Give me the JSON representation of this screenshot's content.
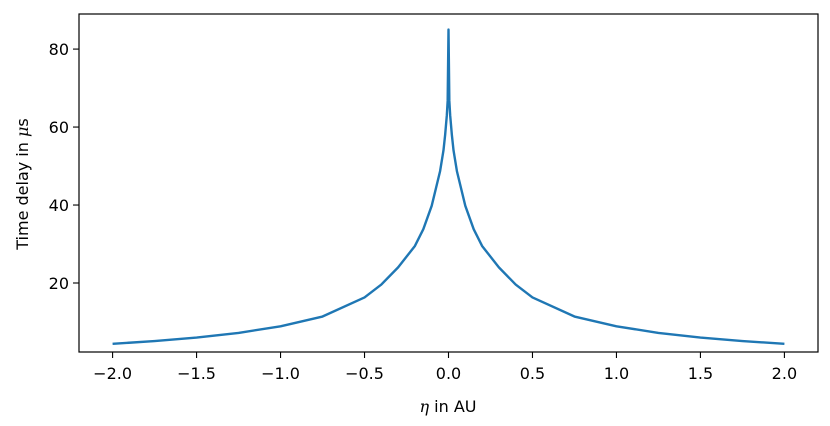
{
  "chart_data": {
    "type": "line",
    "title": "",
    "xlabel_symbol": "η",
    "xlabel_text": " in AU",
    "ylabel_text": "Time delay in ",
    "ylabel_symbol": "μ",
    "ylabel_unit": "s",
    "xlim": [
      -2.2,
      2.2
    ],
    "ylim": [
      2.3,
      89
    ],
    "xticks": [
      -2.0,
      -1.5,
      -1.0,
      -0.5,
      0.0,
      0.5,
      1.0,
      1.5,
      2.0
    ],
    "xtick_labels": [
      "−2.0",
      "−1.5",
      "−1.0",
      "−0.5",
      "0.0",
      "0.5",
      "1.0",
      "1.5",
      "2.0"
    ],
    "yticks": [
      20,
      40,
      60,
      80
    ],
    "ytick_labels": [
      "20",
      "40",
      "60",
      "80"
    ],
    "grid": false,
    "legend": "none",
    "series": [
      {
        "color": "#1f77b4",
        "x": [
          -2.0,
          -1.75,
          -1.5,
          -1.25,
          -1.0,
          -0.75,
          -0.5,
          -0.4,
          -0.3,
          -0.2,
          -0.15,
          -0.1,
          -0.05,
          -0.03,
          -0.02,
          -0.01,
          -0.005,
          0.0,
          0.005,
          0.01,
          0.02,
          0.03,
          0.05,
          0.1,
          0.15,
          0.2,
          0.3,
          0.4,
          0.5,
          0.75,
          1.0,
          1.25,
          1.5,
          1.75,
          2.0
        ],
        "y": [
          4.4,
          5.1,
          6.0,
          7.2,
          8.9,
          11.4,
          16.3,
          19.6,
          24.0,
          29.5,
          33.8,
          39.8,
          48.7,
          54.0,
          58.0,
          63.0,
          66.7,
          85.0,
          66.7,
          63.0,
          58.0,
          54.0,
          48.7,
          39.8,
          33.8,
          29.5,
          24.0,
          19.6,
          16.3,
          11.4,
          8.9,
          7.2,
          6.0,
          5.1,
          4.4
        ]
      }
    ]
  }
}
